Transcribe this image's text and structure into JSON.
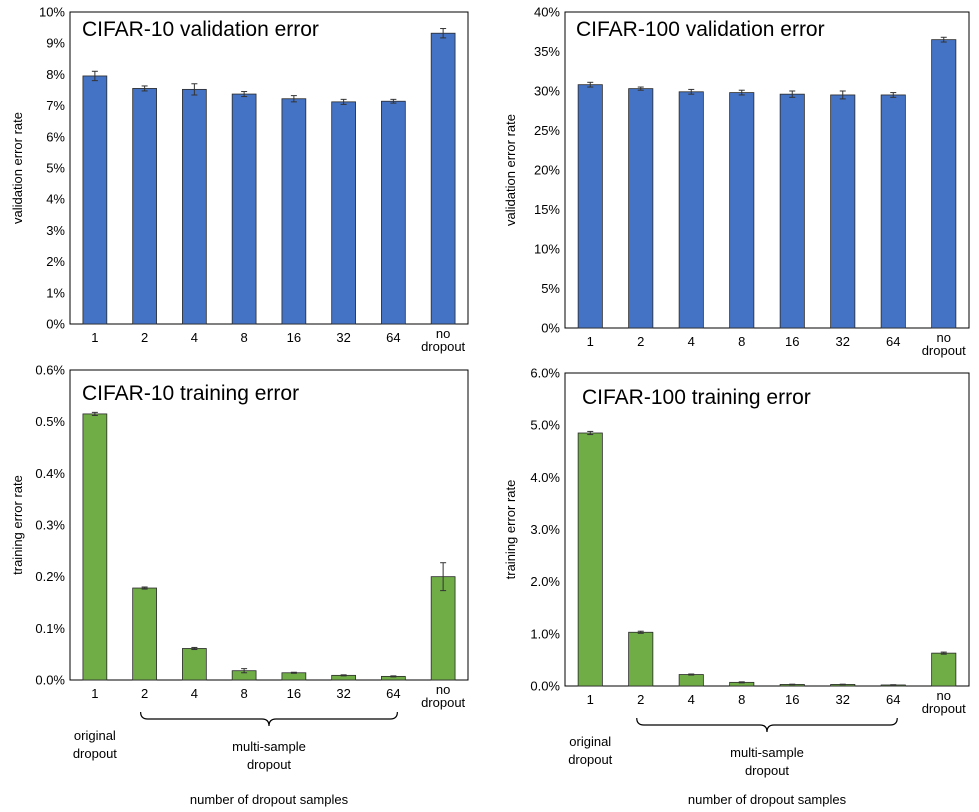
{
  "chart_data": [
    {
      "id": "cifar10-val",
      "type": "bar",
      "title": "CIFAR-10 validation error",
      "xlabel": "",
      "ylabel": "validation error rate",
      "categories": [
        "1",
        "2",
        "4",
        "8",
        "16",
        "32",
        "64",
        "no dropout"
      ],
      "values": [
        7.95,
        7.55,
        7.52,
        7.37,
        7.22,
        7.12,
        7.14,
        9.32
      ],
      "errors": [
        0.15,
        0.08,
        0.18,
        0.08,
        0.1,
        0.08,
        0.06,
        0.15
      ],
      "yticks": [
        "0%",
        "1%",
        "2%",
        "3%",
        "4%",
        "5%",
        "6%",
        "7%",
        "8%",
        "9%",
        "10%"
      ],
      "ylim": [
        0,
        10
      ],
      "color": "#4472c4"
    },
    {
      "id": "cifar100-val",
      "type": "bar",
      "title": "CIFAR-100 validation error",
      "xlabel": "",
      "ylabel": "validation error rate",
      "categories": [
        "1",
        "2",
        "4",
        "8",
        "16",
        "32",
        "64",
        "no dropout"
      ],
      "values": [
        30.8,
        30.3,
        29.9,
        29.8,
        29.6,
        29.5,
        29.5,
        36.5
      ],
      "errors": [
        0.3,
        0.2,
        0.3,
        0.3,
        0.4,
        0.5,
        0.3,
        0.3
      ],
      "yticks": [
        "0%",
        "5%",
        "10%",
        "15%",
        "20%",
        "25%",
        "30%",
        "35%",
        "40%"
      ],
      "ylim": [
        0,
        40
      ],
      "color": "#4472c4"
    },
    {
      "id": "cifar10-train",
      "type": "bar",
      "title": "CIFAR-10 training error",
      "xlabel": "number of dropout samples",
      "ylabel": "training error rate",
      "categories": [
        "1",
        "2",
        "4",
        "8",
        "16",
        "32",
        "64",
        "no dropout"
      ],
      "values": [
        0.515,
        0.178,
        0.061,
        0.018,
        0.014,
        0.009,
        0.007,
        0.2
      ],
      "errors": [
        0.003,
        0.002,
        0.002,
        0.004,
        0.001,
        0.001,
        0.001,
        0.027
      ],
      "yticks": [
        "0.0%",
        "0.1%",
        "0.2%",
        "0.3%",
        "0.4%",
        "0.5%",
        "0.6%"
      ],
      "ylim": [
        0,
        0.6
      ],
      "color": "#70ad47",
      "annotations": {
        "left": [
          "original",
          "dropout"
        ],
        "middle": [
          "multi-sample",
          "dropout"
        ]
      }
    },
    {
      "id": "cifar100-train",
      "type": "bar",
      "title": "CIFAR-100 training error",
      "xlabel": "number of dropout samples",
      "ylabel": "training error rate",
      "categories": [
        "1",
        "2",
        "4",
        "8",
        "16",
        "32",
        "64",
        "no dropout"
      ],
      "values": [
        4.85,
        1.03,
        0.22,
        0.07,
        0.03,
        0.03,
        0.02,
        0.63
      ],
      "errors": [
        0.03,
        0.02,
        0.01,
        0.01,
        0.005,
        0.005,
        0.005,
        0.02
      ],
      "yticks": [
        "0.0%",
        "1.0%",
        "2.0%",
        "3.0%",
        "4.0%",
        "5.0%",
        "6.0%"
      ],
      "ylim": [
        0,
        6
      ],
      "color": "#70ad47",
      "annotations": {
        "left": [
          "original",
          "dropout"
        ],
        "middle": [
          "multi-sample",
          "dropout"
        ]
      }
    }
  ]
}
